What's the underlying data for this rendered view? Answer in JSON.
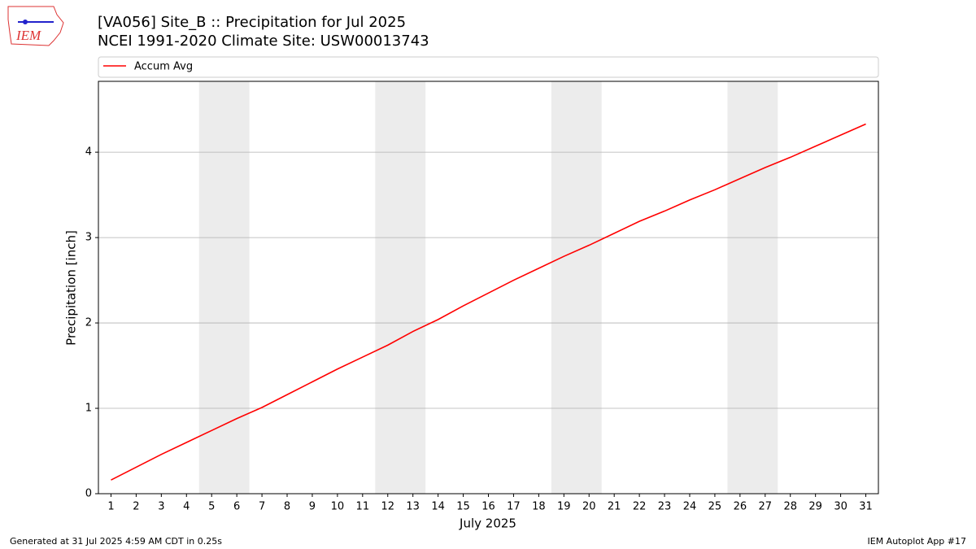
{
  "logo": "IEM",
  "footer": {
    "left": "Generated at 31 Jul 2025 4:59 AM CDT in 0.25s",
    "right": "IEM Autoplot App #17"
  },
  "chart_data": {
    "type": "line",
    "title": "[VA056] Site_B :: Precipitation for Jul 2025",
    "subtitle": "NCEI 1991-2020 Climate Site: USW00013743",
    "xlabel": "July 2025",
    "ylabel": "Precipitation [inch]",
    "x": [
      1,
      2,
      3,
      4,
      5,
      6,
      7,
      8,
      9,
      10,
      11,
      12,
      13,
      14,
      15,
      16,
      17,
      18,
      19,
      20,
      21,
      22,
      23,
      24,
      25,
      26,
      27,
      28,
      29,
      30,
      31
    ],
    "series": [
      {
        "name": "Accum Avg",
        "color": "#ff0000",
        "values": [
          0.16,
          0.31,
          0.46,
          0.6,
          0.74,
          0.88,
          1.01,
          1.16,
          1.31,
          1.46,
          1.6,
          1.74,
          1.9,
          2.04,
          2.2,
          2.35,
          2.5,
          2.64,
          2.78,
          2.91,
          3.05,
          3.19,
          3.31,
          3.44,
          3.56,
          3.69,
          3.82,
          3.94,
          4.07,
          4.2,
          4.33
        ]
      }
    ],
    "xlim": [
      0.5,
      31.5
    ],
    "ylim": [
      0,
      4.83
    ],
    "xticks": [
      1,
      2,
      3,
      4,
      5,
      6,
      7,
      8,
      9,
      10,
      11,
      12,
      13,
      14,
      15,
      16,
      17,
      18,
      19,
      20,
      21,
      22,
      23,
      24,
      25,
      26,
      27,
      28,
      29,
      30,
      31
    ],
    "yticks": [
      0,
      1,
      2,
      3,
      4
    ],
    "grid": "y",
    "shaded_spans": [
      [
        4.5,
        6.5
      ],
      [
        11.5,
        13.5
      ],
      [
        18.5,
        20.5
      ],
      [
        25.5,
        27.5
      ]
    ],
    "shade_color": "#ececec",
    "legend": "top"
  }
}
